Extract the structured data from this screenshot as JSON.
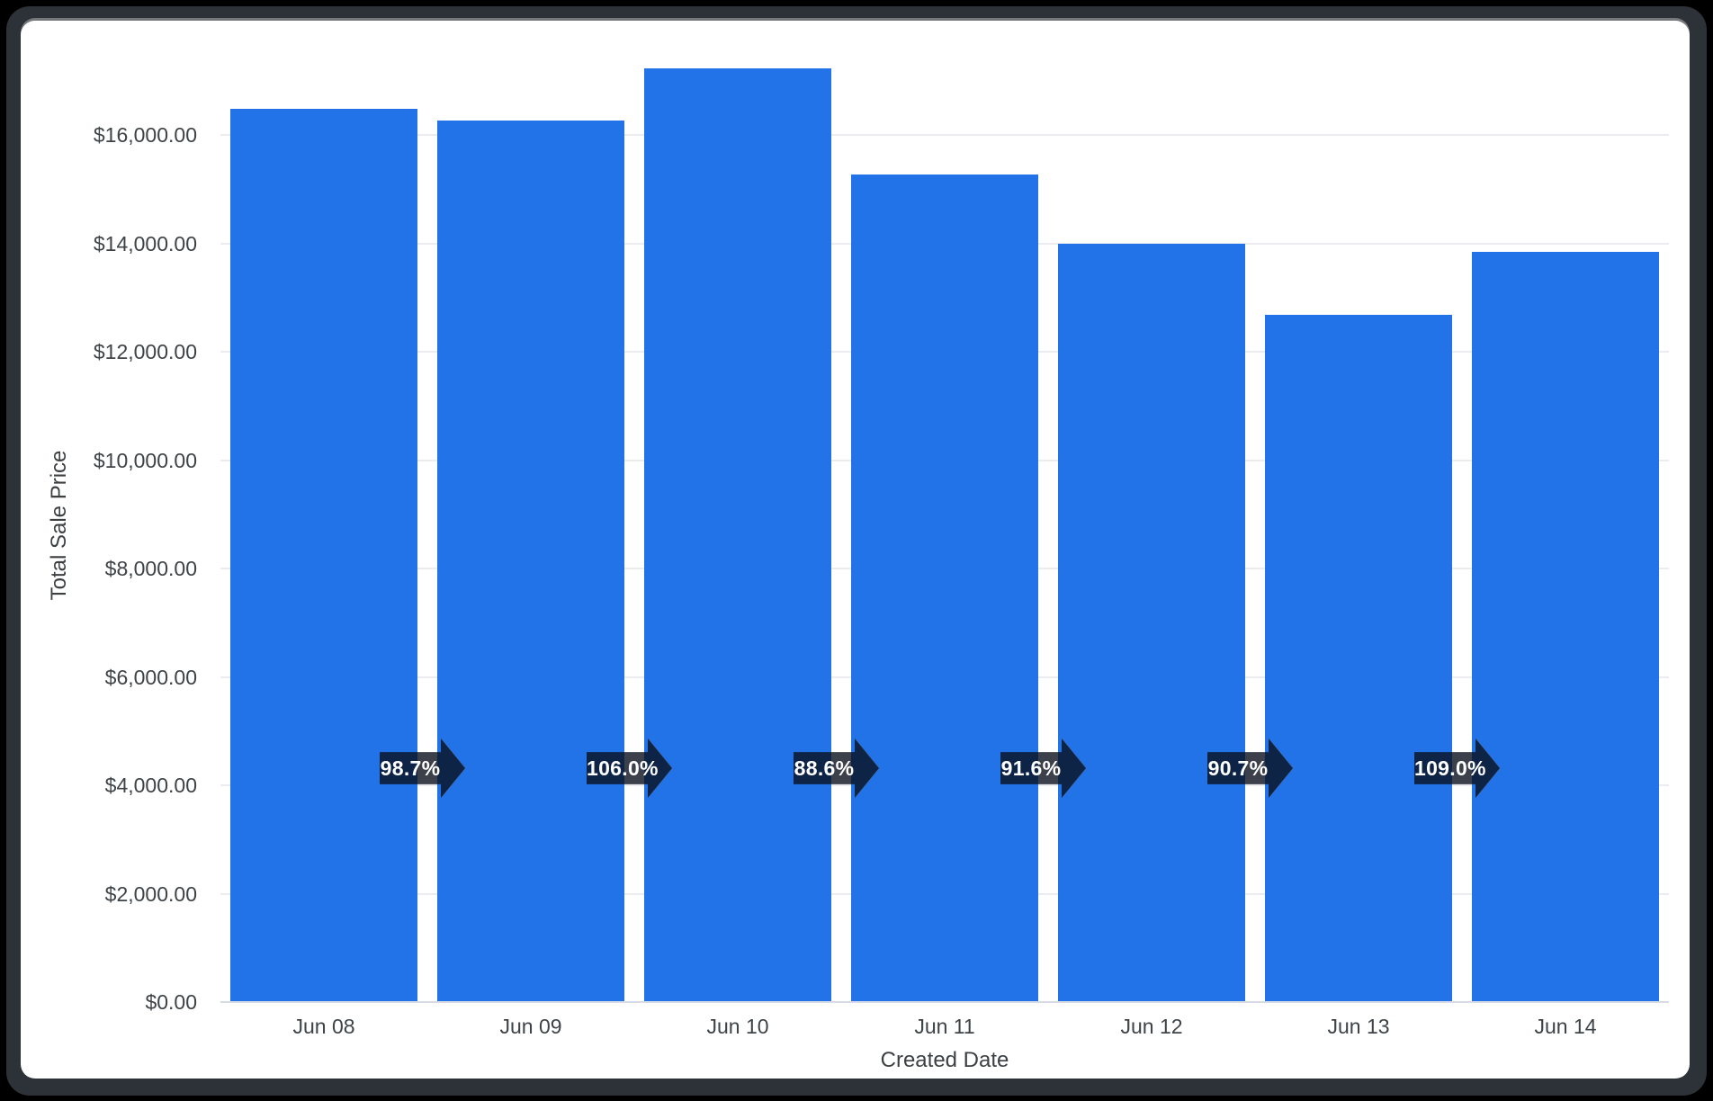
{
  "window": {
    "background_color": "#000000",
    "frame_color": "#2c3237",
    "card_color": "#ffffff"
  },
  "chart_data": {
    "type": "bar",
    "title": "",
    "xlabel": "Created Date",
    "ylabel": "Total Sale Price",
    "categories": [
      "Jun 08",
      "Jun 09",
      "Jun 10",
      "Jun 11",
      "Jun 12",
      "Jun 13",
      "Jun 14"
    ],
    "values": [
      16480,
      16270,
      17240,
      15280,
      14000,
      12690,
      13840
    ],
    "y_ticks": [
      "$0.00",
      "$2,000.00",
      "$4,000.00",
      "$6,000.00",
      "$8,000.00",
      "$10,000.00",
      "$12,000.00",
      "$14,000.00",
      "$16,000.00"
    ],
    "y_tick_values": [
      0,
      2000,
      4000,
      6000,
      8000,
      10000,
      12000,
      14000,
      16000
    ],
    "ylim": [
      0,
      17600
    ],
    "grid": "horizontal",
    "legend_position": "none",
    "bar_color": "#2273e8",
    "gridline_color": "#ebecef",
    "baseline_color": "#d7dbe6",
    "axis_text_color": "#3d4347",
    "growth_arrows": {
      "values": [
        "98.7%",
        "106.0%",
        "88.6%",
        "91.6%",
        "90.7%",
        "109.0%"
      ],
      "fill_color": "rgba(10,16,30,0.8)",
      "text_color": "#ffffff"
    }
  }
}
